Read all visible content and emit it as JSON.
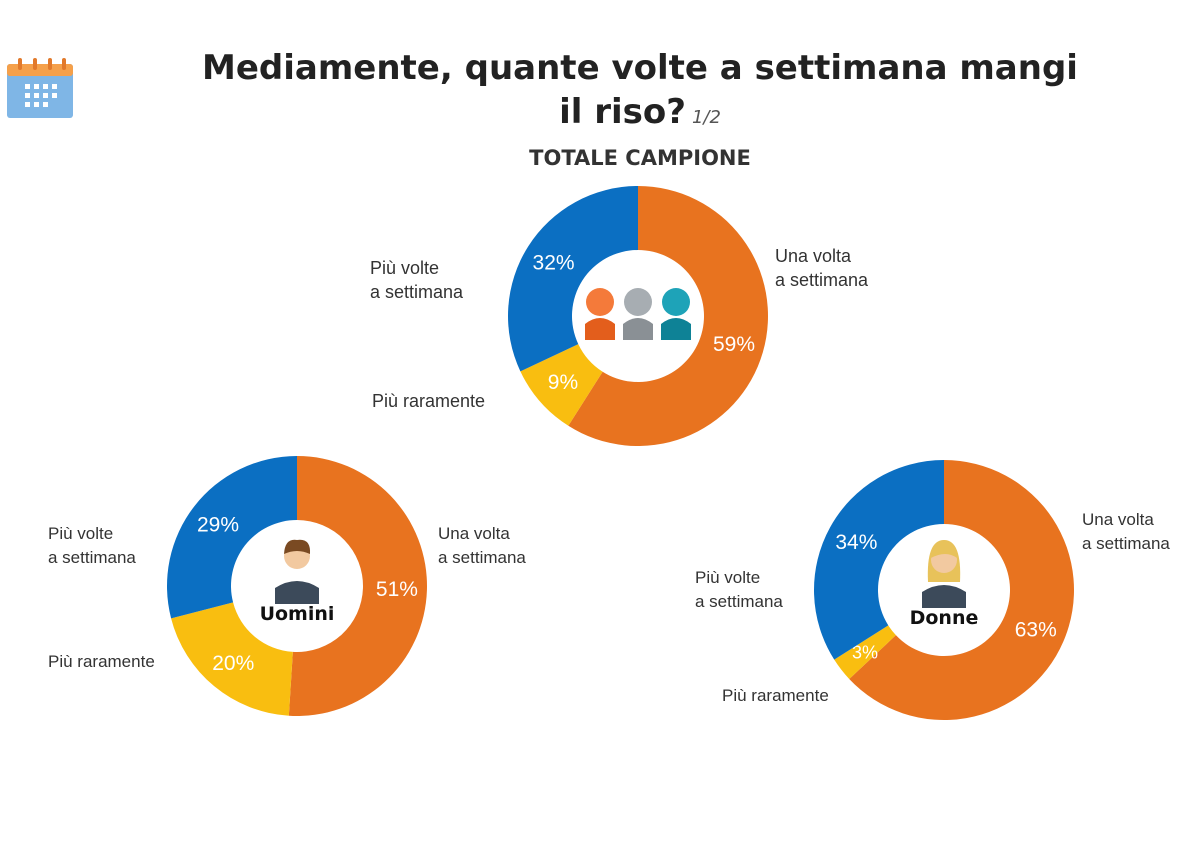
{
  "page": {
    "title_line1": "Mediamente, quante volte a settimana mangi",
    "title_line2": "il riso?",
    "page_indicator": "1/2",
    "icon": "calendar-icon"
  },
  "colors": {
    "una_volta": "#E8731F",
    "piu_volte": "#0B6FC2",
    "piu_raramente": "#F9BE10",
    "accent_calendar": "#F5A04A"
  },
  "chart_data": [
    {
      "type": "pie",
      "variant": "donut",
      "title": "TOTALE CAMPIONE",
      "center_icon": "people-group-icon",
      "slices": [
        {
          "label": "Una volta\na settimana",
          "value": 59,
          "value_label": "59%",
          "color": "#E8731F"
        },
        {
          "label": "Più raramente",
          "value": 9,
          "value_label": "9%",
          "color": "#F9BE10"
        },
        {
          "label": "Più volte\na settimana",
          "value": 32,
          "value_label": "32%",
          "color": "#0B6FC2"
        }
      ]
    },
    {
      "type": "pie",
      "variant": "donut",
      "title": "Uomini",
      "center_icon": "man-avatar-icon",
      "slices": [
        {
          "label": "Una volta\na settimana",
          "value": 51,
          "value_label": "51%",
          "color": "#E8731F"
        },
        {
          "label": "Più raramente",
          "value": 20,
          "value_label": "20%",
          "color": "#F9BE10"
        },
        {
          "label": "Più volte\na settimana",
          "value": 29,
          "value_label": "29%",
          "color": "#0B6FC2"
        }
      ]
    },
    {
      "type": "pie",
      "variant": "donut",
      "title": "Donne",
      "center_icon": "woman-avatar-icon",
      "slices": [
        {
          "label": "Una volta\na settimana",
          "value": 63,
          "value_label": "63%",
          "color": "#E8731F"
        },
        {
          "label": "Più raramente",
          "value": 3,
          "value_label": "3%",
          "color": "#F9BE10"
        },
        {
          "label": "Più volte\na settimana",
          "value": 34,
          "value_label": "34%",
          "color": "#0B6FC2"
        }
      ]
    }
  ]
}
